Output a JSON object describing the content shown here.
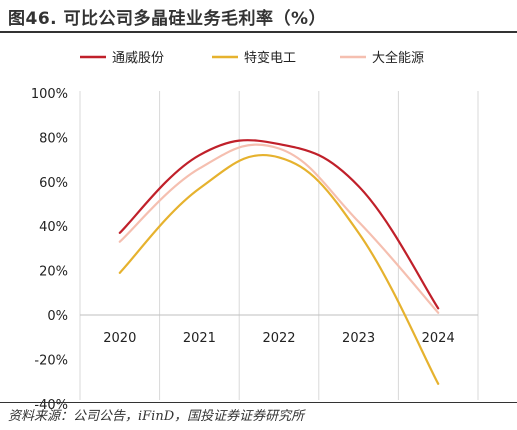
{
  "title": "图46. 可比公司多晶硅业务毛利率（%）",
  "source": "资料来源：公司公告，iFinD，国投证券证券研究所",
  "chart_data": {
    "type": "line",
    "x": [
      "2020",
      "2021",
      "2022",
      "2023",
      "2024"
    ],
    "series": [
      {
        "name": "通威股份",
        "color": "#C0202A",
        "values": [
          37,
          72,
          77,
          58,
          3
        ]
      },
      {
        "name": "特变电工",
        "color": "#E6B22E",
        "values": [
          19,
          57,
          71,
          37,
          -31
        ]
      },
      {
        "name": "大全能源",
        "color": "#F5BFB0",
        "values": [
          33,
          66,
          75,
          42,
          1
        ]
      }
    ],
    "yticks": [
      "100%",
      "80%",
      "60%",
      "40%",
      "20%",
      "0%",
      "-20%",
      "-40%"
    ],
    "ylim": [
      -40,
      100
    ],
    "legend_position": "top",
    "grid": true
  }
}
